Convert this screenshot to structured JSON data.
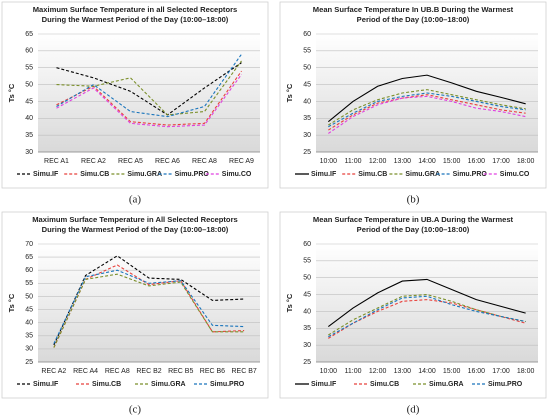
{
  "chart_data": [
    {
      "type": "line",
      "caption": "(a)",
      "title": [
        "Maximum Surface Temperature in all Selected Receptors",
        "During the Warmest Period of the Day (10:00–18:00)"
      ],
      "y_label": "Ts °C",
      "categories": [
        "REC A1",
        "REC A2",
        "REC A5",
        "REC A6",
        "REC A8",
        "REC A9"
      ],
      "ylim": [
        30,
        65
      ],
      "yticks": [
        30,
        35,
        40,
        45,
        50,
        55,
        60,
        65
      ],
      "grid": true,
      "series": [
        {
          "name": "Simu.IF",
          "color": "#000000",
          "dashed": true,
          "values": [
            55,
            52,
            48,
            41,
            49,
            56.5
          ]
        },
        {
          "name": "Simu.CB",
          "color": "#e8413c",
          "dashed": true,
          "values": [
            44,
            49.5,
            39,
            38,
            38.5,
            54
          ]
        },
        {
          "name": "Simu.GRA",
          "color": "#7b8f2a",
          "dashed": true,
          "values": [
            50,
            49.5,
            52,
            41,
            42,
            57
          ]
        },
        {
          "name": "Simu.PRO",
          "color": "#1a75bc",
          "dashed": true,
          "values": [
            43.5,
            50,
            42,
            40.5,
            43.5,
            59
          ]
        },
        {
          "name": "Simu.CO",
          "color": "#e040e0",
          "dashed": true,
          "values": [
            43,
            49,
            38.5,
            37.5,
            38,
            53
          ]
        }
      ]
    },
    {
      "type": "line",
      "caption": "(b)",
      "title": [
        "Mean Surface Temperature In UB.B  During the Warmest",
        "Period of the Day (10:00–18:00)"
      ],
      "y_label": "Ts °C",
      "categories": [
        "10:00",
        "11:00",
        "12:00",
        "13:00",
        "14:00",
        "15:00",
        "16:00",
        "17:00",
        "18:00"
      ],
      "ylim": [
        25,
        60
      ],
      "yticks": [
        25,
        30,
        35,
        40,
        45,
        50,
        55,
        60
      ],
      "grid": true,
      "series": [
        {
          "name": "Simu.IF",
          "color": "#000000",
          "dashed": false,
          "values": [
            34,
            40,
            44.5,
            46.8,
            47.8,
            45.5,
            43,
            41.2,
            39.3
          ]
        },
        {
          "name": "Simu.CB",
          "color": "#e8413c",
          "dashed": true,
          "values": [
            31.5,
            36,
            39.5,
            41,
            42,
            40.5,
            39,
            37.5,
            36.5
          ]
        },
        {
          "name": "Simu.GRA",
          "color": "#7b8f2a",
          "dashed": true,
          "values": [
            33,
            37.5,
            40.5,
            42.5,
            43.5,
            42,
            40.5,
            39,
            37.8
          ]
        },
        {
          "name": "Simu.PRO",
          "color": "#1a75bc",
          "dashed": true,
          "values": [
            32.5,
            36.5,
            40,
            41.5,
            42.5,
            41.5,
            40,
            38.5,
            37.5
          ]
        },
        {
          "name": "Simu.CO",
          "color": "#e040e0",
          "dashed": true,
          "values": [
            30.5,
            35.5,
            39,
            41,
            41.5,
            40,
            38,
            37,
            35.5
          ]
        }
      ]
    },
    {
      "type": "line",
      "caption": "(c)",
      "title": [
        "Maximum Surface Temperature in All Selected Receptors",
        "During the Warmest Period of the Day (10:00–18:00)"
      ],
      "y_label": "Ts °C",
      "categories": [
        "REC A2",
        "REC A4",
        "REC A8",
        "REC B2",
        "REC B5",
        "REC B6",
        "REC B7"
      ],
      "ylim": [
        25,
        70
      ],
      "yticks": [
        25,
        30,
        35,
        40,
        45,
        50,
        55,
        60,
        65,
        70
      ],
      "grid": true,
      "series": [
        {
          "name": "Simu.IF",
          "color": "#000000",
          "dashed": true,
          "values": [
            31.5,
            58,
            65.5,
            57,
            56.5,
            48.5,
            49
          ]
        },
        {
          "name": "Simu.CB",
          "color": "#e8413c",
          "dashed": true,
          "values": [
            30.5,
            56.5,
            62,
            54.5,
            56,
            36.5,
            37
          ]
        },
        {
          "name": "Simu.GRA",
          "color": "#7b8f2a",
          "dashed": true,
          "values": [
            30.5,
            56.5,
            58.5,
            54,
            55.5,
            36.5,
            36.5
          ]
        },
        {
          "name": "Simu.PRO",
          "color": "#1a75bc",
          "dashed": true,
          "values": [
            32,
            57.5,
            60,
            55,
            56,
            39,
            38.5
          ]
        }
      ]
    },
    {
      "type": "line",
      "caption": "(d)",
      "title": [
        "Mean Surface Temperature in UB.A During the Warmest",
        "Period of the Day (10:00–18:00)"
      ],
      "y_label": "Ts °C",
      "categories": [
        "10:00",
        "11:00",
        "12:00",
        "13:00",
        "14:00",
        "15:00",
        "16:00",
        "17:00",
        "18:00"
      ],
      "ylim": [
        25,
        60
      ],
      "yticks": [
        25,
        30,
        35,
        40,
        45,
        50,
        55,
        60
      ],
      "grid": true,
      "series": [
        {
          "name": "Simu.IF",
          "color": "#000000",
          "dashed": false,
          "values": [
            35.5,
            41,
            45.5,
            49,
            49.5,
            46.5,
            43.5,
            41.5,
            39.5
          ]
        },
        {
          "name": "Simu.CB",
          "color": "#e8413c",
          "dashed": true,
          "values": [
            32,
            36.5,
            40,
            43,
            43.5,
            42.5,
            40.5,
            38.5,
            36.5
          ]
        },
        {
          "name": "Simu.GRA",
          "color": "#7b8f2a",
          "dashed": true,
          "values": [
            33,
            37.5,
            41,
            44.5,
            45,
            43,
            40.5,
            38.5,
            37
          ]
        },
        {
          "name": "Simu.PRO",
          "color": "#1a75bc",
          "dashed": true,
          "values": [
            32.5,
            36.5,
            40.5,
            44,
            44.5,
            42,
            40,
            38.5,
            37
          ]
        }
      ]
    }
  ]
}
